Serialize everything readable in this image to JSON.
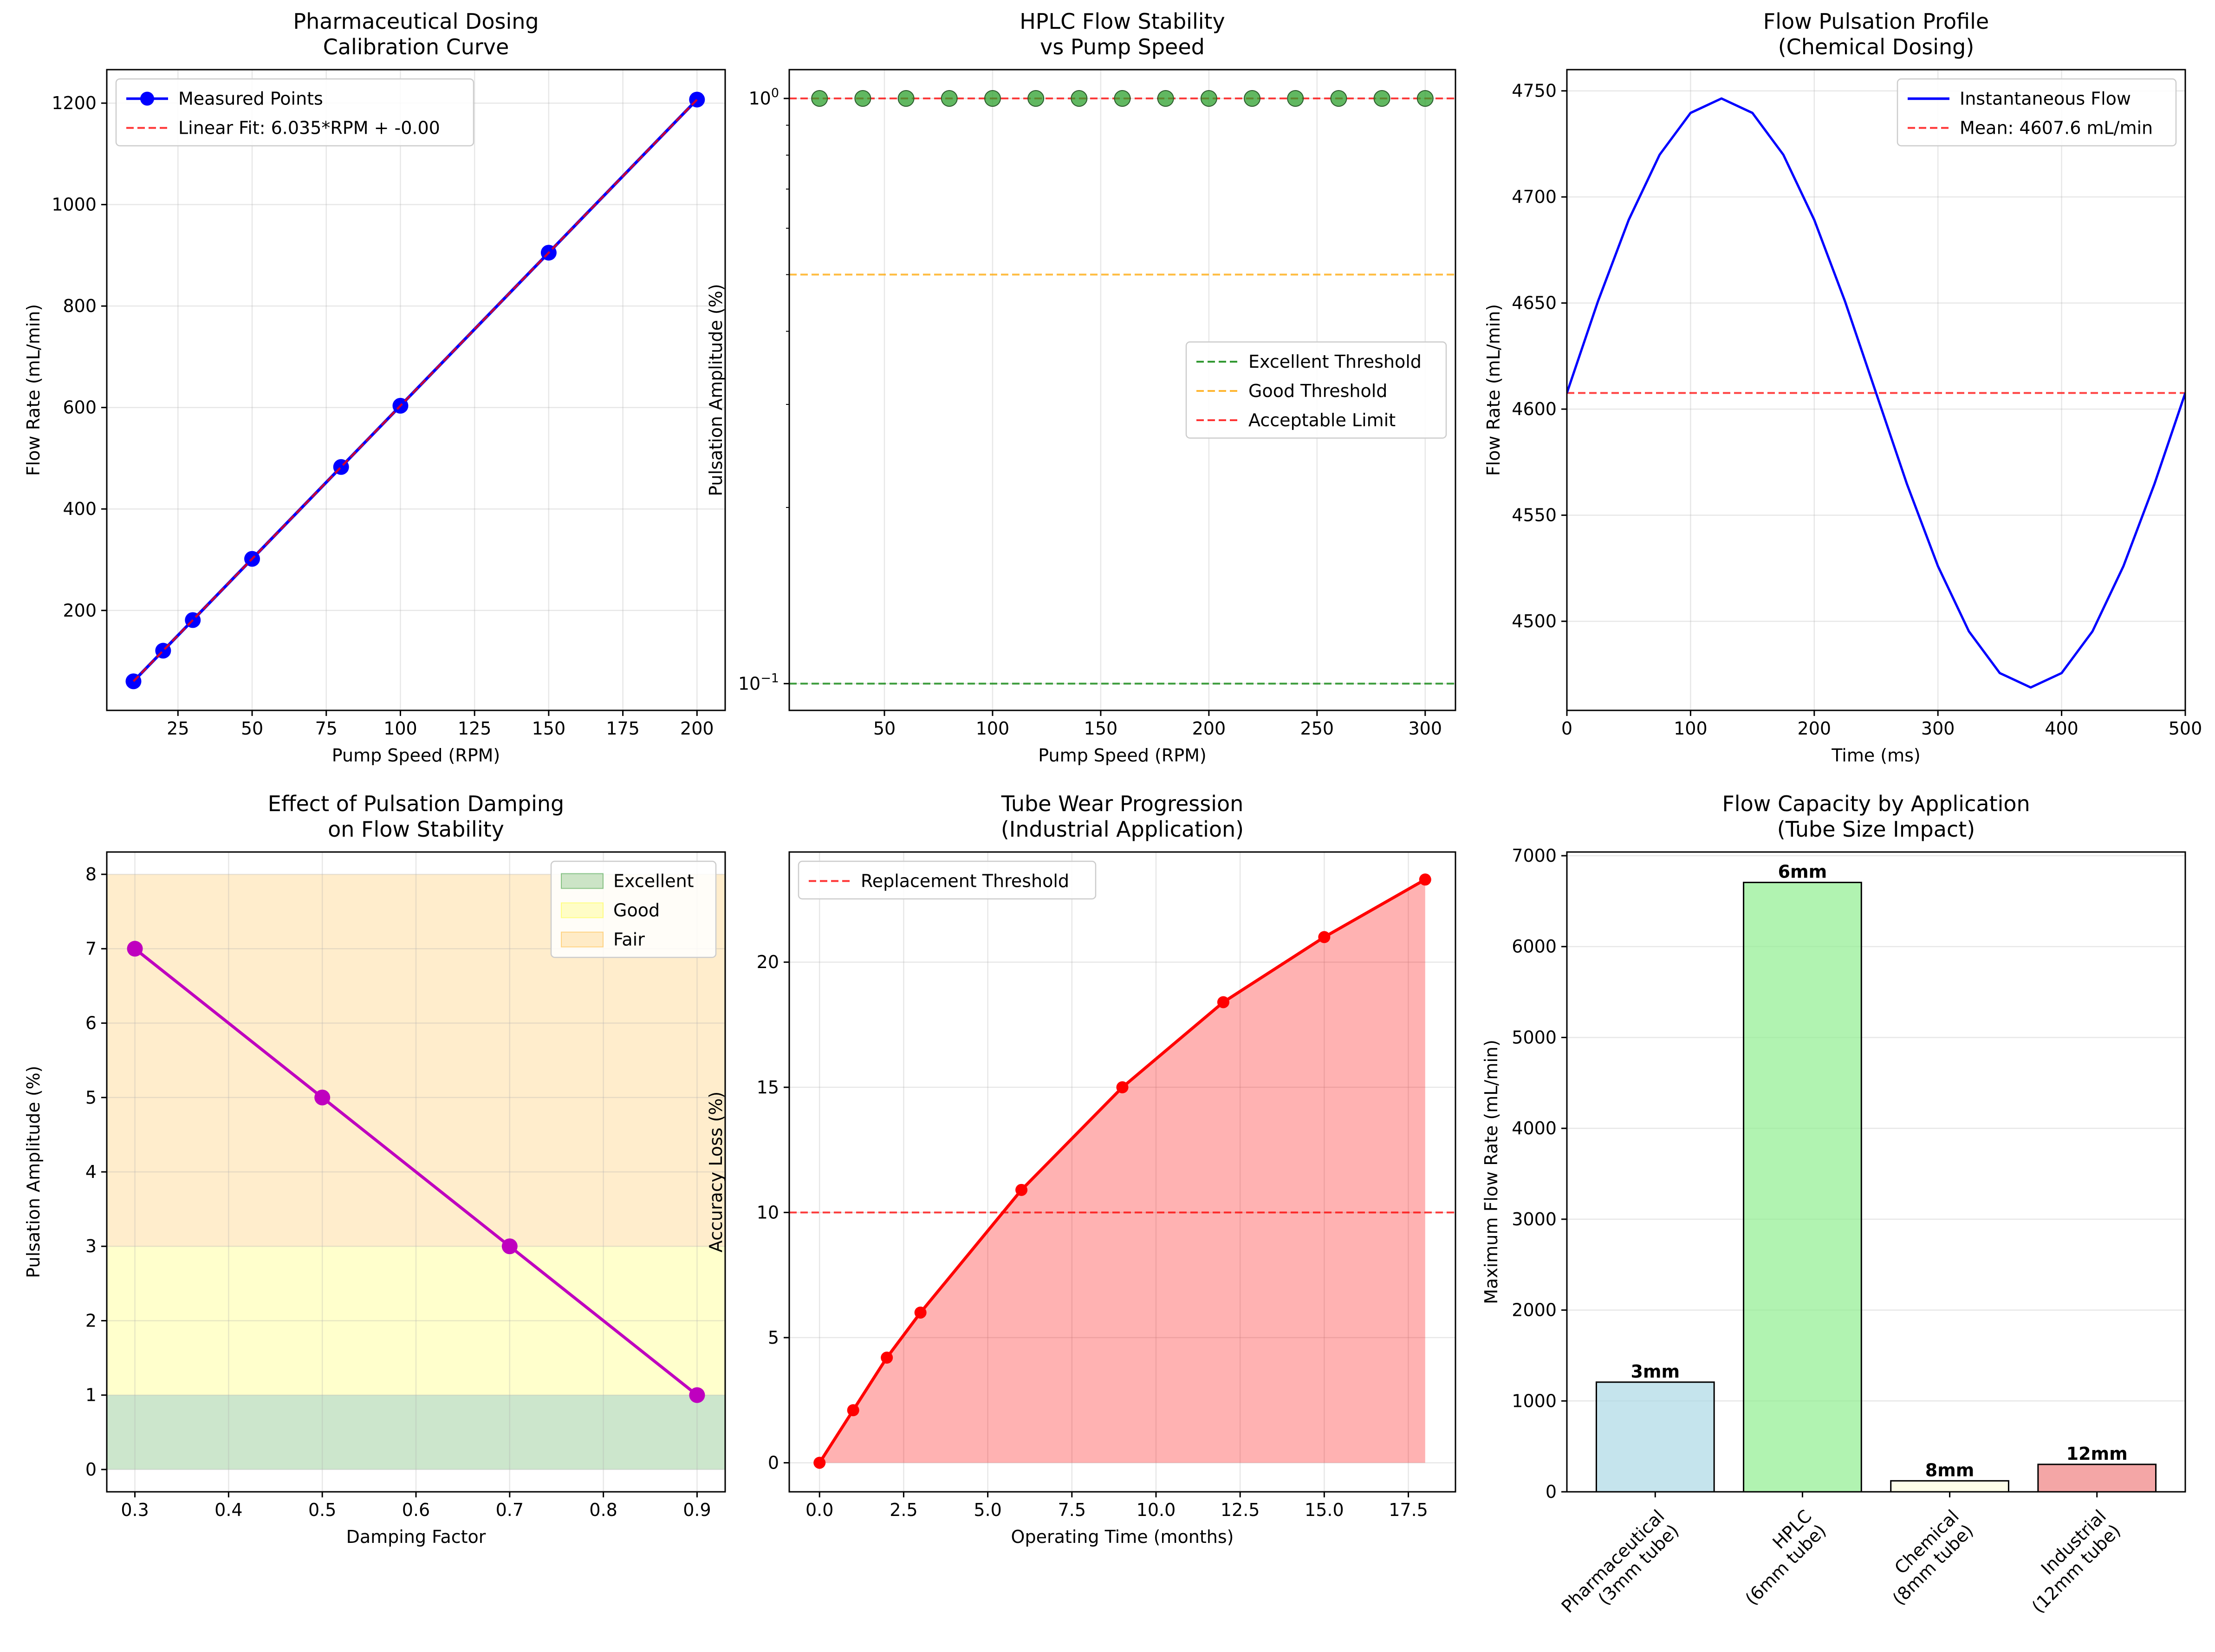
{
  "chart_data": [
    {
      "type": "line",
      "title": [
        "Pharmaceutical Dosing",
        "Calibration Curve"
      ],
      "xlabel": "Pump Speed (RPM)",
      "ylabel": "Flow Rate (mL/min)",
      "xlim": [
        1,
        209.5
      ],
      "ylim": [
        3,
        1266
      ],
      "xticks": [
        25,
        50,
        75,
        100,
        125,
        150,
        175,
        200
      ],
      "yticks": [
        200,
        400,
        600,
        800,
        1000,
        1200
      ],
      "grid": true,
      "legend_loc": "upper left",
      "series": [
        {
          "name": "Measured Points",
          "style": "line-marker",
          "color": "#0000ff",
          "x": [
            10,
            20,
            30,
            50,
            80,
            100,
            150,
            200
          ],
          "y": [
            60.3,
            120.7,
            181.0,
            301.7,
            482.8,
            603.5,
            905.2,
            1207.0
          ]
        },
        {
          "name": "Linear Fit: 6.035*RPM + -0.00",
          "style": "dashed",
          "color": "#ff0000",
          "x": [
            10,
            200
          ],
          "y": [
            60.35,
            1207.0
          ]
        }
      ]
    },
    {
      "type": "scatter",
      "title": [
        "HPLC Flow Stability",
        "vs Pump Speed"
      ],
      "xlabel": "Pump Speed (RPM)",
      "ylabel": "Pulsation Amplitude (%)",
      "yscale": "log",
      "xlim": [
        6,
        314
      ],
      "ylim": [
        0.09,
        1.12
      ],
      "xticks": [
        50,
        100,
        150,
        200,
        250,
        300
      ],
      "yticks": [
        {
          "value": 0.1,
          "base": "10",
          "exp": "−1"
        },
        {
          "value": 1,
          "base": "10",
          "exp": "0"
        }
      ],
      "grid": true,
      "legend_loc": "center right",
      "series": [
        {
          "name": "",
          "style": "marker",
          "color": "#2ca02c",
          "x": [
            20,
            40,
            60,
            80,
            100,
            120,
            140,
            160,
            180,
            200,
            220,
            240,
            260,
            280,
            300
          ],
          "y": [
            1,
            1,
            1,
            1,
            1,
            1,
            1,
            1,
            1,
            1,
            1,
            1,
            1,
            1,
            1
          ]
        }
      ],
      "hlines": [
        {
          "name": "Excellent Threshold",
          "y": 0.1,
          "color": "#008000"
        },
        {
          "name": "Good Threshold",
          "y": 0.5,
          "color": "#ffa500"
        },
        {
          "name": "Acceptable Limit",
          "y": 1.0,
          "color": "#ff0000"
        }
      ]
    },
    {
      "type": "line",
      "title": [
        "Flow Pulsation Profile",
        "(Chemical Dosing)"
      ],
      "xlabel": "Time (ms)",
      "ylabel": "Flow Rate (mL/min)",
      "xlim": [
        0,
        500
      ],
      "ylim": [
        4458,
        4760
      ],
      "xticks": [
        0,
        100,
        200,
        300,
        400,
        500
      ],
      "yticks": [
        4500,
        4550,
        4600,
        4650,
        4700,
        4750
      ],
      "grid": true,
      "legend_loc": "upper right",
      "series": [
        {
          "name": "Instantaneous Flow",
          "style": "line",
          "color": "#0000ff",
          "x": [
            0,
            25,
            50,
            75,
            100,
            125,
            150,
            175,
            200,
            225,
            250,
            275,
            300,
            325,
            350,
            375,
            400,
            425,
            450,
            475,
            500
          ],
          "y": [
            4607.6,
            4650.6,
            4689.2,
            4719.9,
            4739.6,
            4746.4,
            4739.6,
            4719.9,
            4689.2,
            4650.6,
            4607.6,
            4564.6,
            4526.0,
            4495.3,
            4475.6,
            4468.8,
            4475.6,
            4495.3,
            4526.0,
            4564.6,
            4607.6
          ]
        }
      ],
      "hlines": [
        {
          "name": "Mean: 4607.6 mL/min",
          "y": 4607.6,
          "color": "#ff0000"
        }
      ]
    },
    {
      "type": "line",
      "title": [
        "Effect of Pulsation Damping",
        "on Flow Stability"
      ],
      "xlabel": "Damping Factor",
      "ylabel": "Pulsation Amplitude (%)",
      "xlim": [
        0.27,
        0.93
      ],
      "ylim": [
        -0.3,
        8.3
      ],
      "xticks": [
        0.3,
        0.4,
        0.5,
        0.6,
        0.7,
        0.8,
        0.9
      ],
      "yticks": [
        0,
        1,
        2,
        3,
        4,
        5,
        6,
        7,
        8
      ],
      "grid": true,
      "legend_loc": "upper right",
      "bands": [
        {
          "name": "Excellent",
          "y0": 0,
          "y1": 1,
          "color": "#008000"
        },
        {
          "name": "Good",
          "y0": 1,
          "y1": 3,
          "color": "#ffff00"
        },
        {
          "name": "Fair",
          "y0": 3,
          "y1": 8,
          "color": "#ffa500"
        }
      ],
      "series": [
        {
          "name": "",
          "style": "line-marker",
          "color": "#bf00bf",
          "x": [
            0.3,
            0.5,
            0.7,
            0.9
          ],
          "y": [
            7,
            5,
            3,
            1
          ]
        }
      ]
    },
    {
      "type": "area",
      "title": [
        "Tube Wear Progression",
        "(Industrial Application)"
      ],
      "xlabel": "Operating Time (months)",
      "ylabel": "Accuracy Loss (%)",
      "xlim": [
        -0.9,
        18.9
      ],
      "ylim": [
        -1.16,
        24.4
      ],
      "xticks": [
        0.0,
        2.5,
        5.0,
        7.5,
        10.0,
        12.5,
        15.0,
        17.5
      ],
      "yticks": [
        0,
        5,
        10,
        15,
        20
      ],
      "grid": true,
      "legend_loc": "upper left",
      "series": [
        {
          "name": "",
          "style": "line-marker-fill",
          "color": "#ff0000",
          "x": [
            0,
            1,
            2,
            3,
            6,
            9,
            12,
            15,
            18
          ],
          "y": [
            0,
            2.1,
            4.2,
            6.0,
            10.9,
            15.0,
            18.4,
            21.0,
            23.3
          ]
        }
      ],
      "hlines": [
        {
          "name": "Replacement Threshold",
          "y": 10,
          "color": "#ff0000"
        }
      ]
    },
    {
      "type": "bar",
      "title": [
        "Flow Capacity by Application",
        "(Tube Size Impact)"
      ],
      "xlabel": "",
      "ylabel": "Maximum Flow Rate (mL/min)",
      "categories": [
        [
          "Pharmaceutical",
          "(3mm tube)"
        ],
        [
          "HPLC",
          "(6mm tube)"
        ],
        [
          "Chemical",
          "(8mm tube)"
        ],
        [
          "Industrial",
          "(12mm tube)"
        ]
      ],
      "values": [
        1207,
        6706,
        121,
        302
      ],
      "labels": [
        "3mm",
        "6mm",
        "8mm",
        "12mm"
      ],
      "colors": [
        "#add8e6",
        "#90ee90",
        "#ffffe0",
        "#f08080"
      ],
      "ylim": [
        0,
        7041
      ],
      "yticks": [
        0,
        1000,
        2000,
        3000,
        4000,
        5000,
        6000,
        7000
      ],
      "grid": true
    }
  ]
}
